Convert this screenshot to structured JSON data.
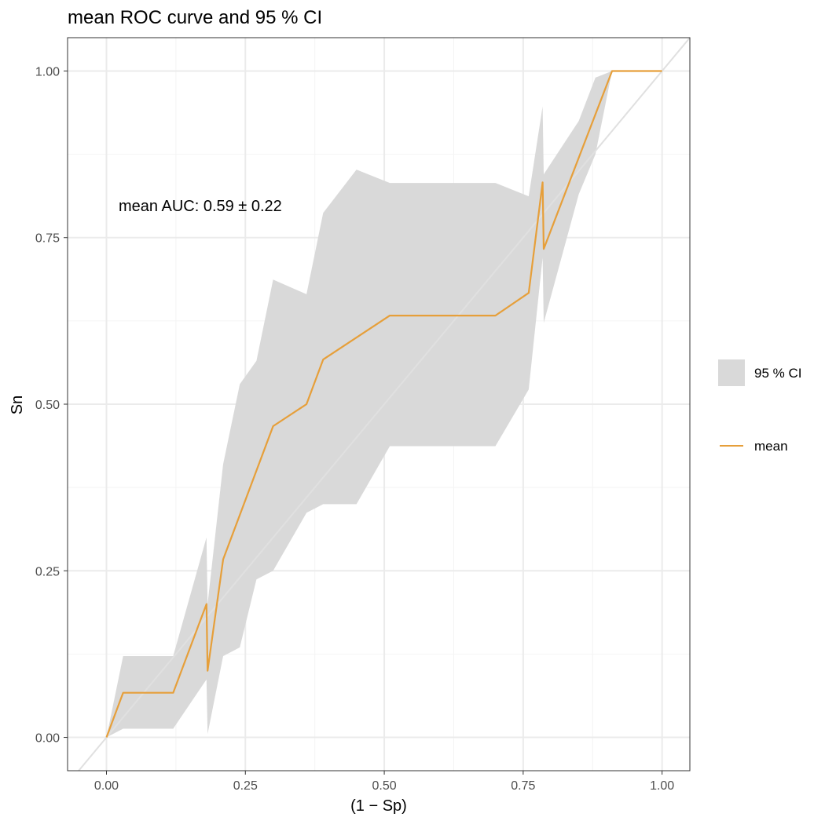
{
  "chart_data": {
    "type": "line",
    "title": "mean ROC curve and 95 % CI",
    "xlabel": "(1 − Sp)",
    "ylabel": "Sn",
    "xlim": [
      -0.07,
      1.05
    ],
    "ylim": [
      -0.05,
      1.05
    ],
    "x_ticks": [
      0,
      0.25,
      0.5,
      0.75,
      1
    ],
    "x_tick_labels": [
      "0.00",
      "0.25",
      "0.50",
      "0.75",
      "1.00"
    ],
    "y_ticks": [
      0,
      0.25,
      0.5,
      0.75,
      1
    ],
    "y_tick_labels": [
      "0.00",
      "0.25",
      "0.50",
      "0.75",
      "1.00"
    ],
    "grid": true,
    "legend_position": "right",
    "annotation": "mean AUC:  0.59 ±  0.22",
    "colors": {
      "mean_line": "#E69F3A",
      "ci_band": "#D9D9D9",
      "diagonal": "#E0E0E0",
      "grid_major": "#EBEBEB",
      "grid_minor": "#F4F4F4",
      "panel_border": "#333333"
    },
    "series": [
      {
        "name": "mean",
        "x": [
          0,
          0.03,
          0.12,
          0.18,
          0.182,
          0.21,
          0.3,
          0.36,
          0.39,
          0.51,
          0.7,
          0.76,
          0.785,
          0.787,
          0.91,
          1.0
        ],
        "y": [
          0,
          0.067,
          0.067,
          0.2,
          0.1,
          0.267,
          0.467,
          0.5,
          0.567,
          0.633,
          0.633,
          0.667,
          0.833,
          0.733,
          1.0,
          1.0
        ]
      }
    ],
    "ci_band": {
      "name": "95 % CI",
      "x": [
        0,
        0.03,
        0.12,
        0.18,
        0.182,
        0.21,
        0.24,
        0.27,
        0.3,
        0.36,
        0.39,
        0.45,
        0.51,
        0.7,
        0.76,
        0.785,
        0.787,
        0.85,
        0.88,
        0.91,
        1.0
      ],
      "upper": [
        0,
        0.122,
        0.122,
        0.3,
        0.2,
        0.41,
        0.53,
        0.565,
        0.687,
        0.665,
        0.787,
        0.852,
        0.832,
        0.832,
        0.812,
        0.947,
        0.845,
        0.925,
        0.99,
        1.0,
        1.0
      ],
      "lower": [
        0,
        0.013,
        0.013,
        0.087,
        0.005,
        0.122,
        0.135,
        0.237,
        0.25,
        0.337,
        0.35,
        0.35,
        0.437,
        0.437,
        0.522,
        0.72,
        0.622,
        0.815,
        0.875,
        1.0,
        1.0
      ]
    },
    "reference_line": {
      "x": [
        -0.07,
        1.05
      ],
      "y": [
        -0.07,
        1.05
      ]
    }
  }
}
